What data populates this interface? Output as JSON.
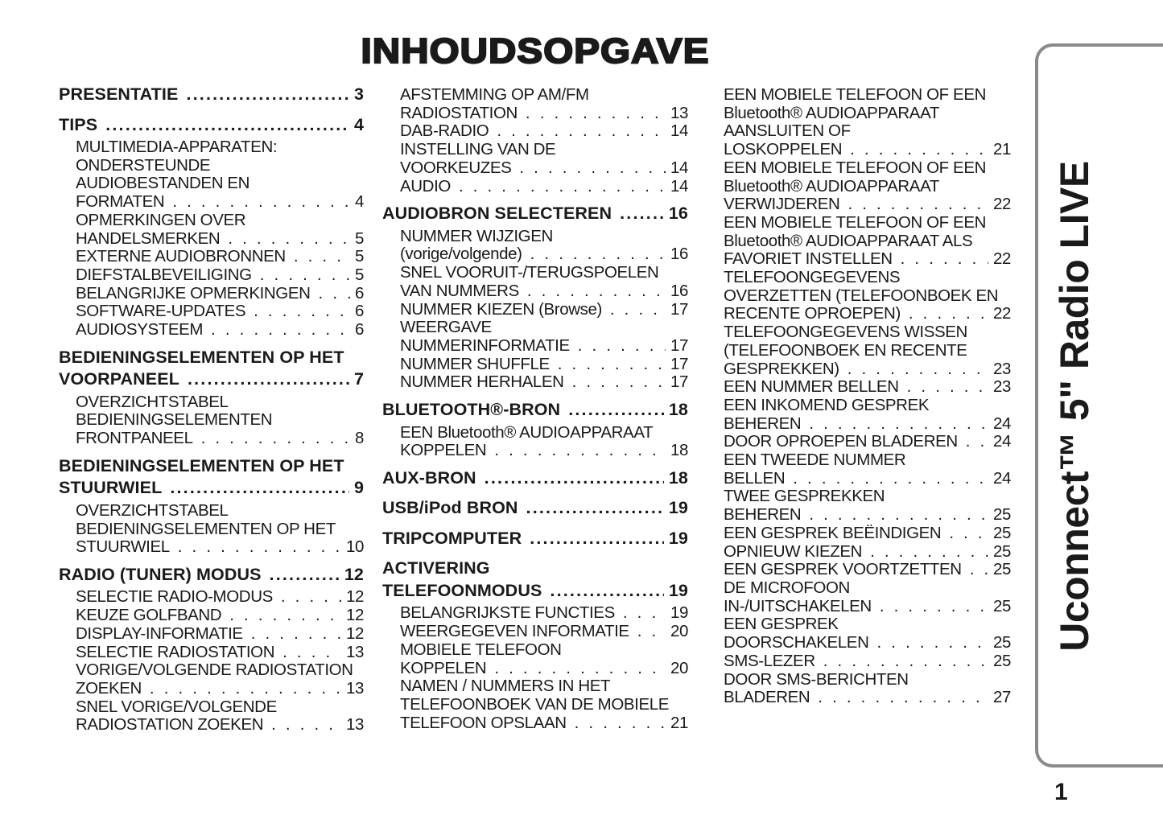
{
  "title": "INHOUDSOPGAVE",
  "side_tab": "Uconnect™ 5\" Radio LIVE",
  "page_number": "1",
  "columns": [
    {
      "entries": [
        {
          "level": "h",
          "lines": [
            "PRESENTATIE"
          ],
          "page": "3"
        },
        {
          "level": "h",
          "lines": [
            "TIPS"
          ],
          "page": "4"
        },
        {
          "level": "s",
          "lines": [
            "MULTIMEDIA-APPARATEN:",
            "ONDERSTEUNDE",
            "AUDIOBESTANDEN EN",
            "FORMATEN"
          ],
          "page": "4"
        },
        {
          "level": "s",
          "lines": [
            "OPMERKINGEN OVER",
            "HANDELSMERKEN"
          ],
          "page": "5"
        },
        {
          "level": "s",
          "lines": [
            "EXTERNE AUDIOBRONNEN"
          ],
          "page": "5"
        },
        {
          "level": "s",
          "lines": [
            "DIEFSTALBEVEILIGING"
          ],
          "page": "5"
        },
        {
          "level": "s",
          "lines": [
            "BELANGRIJKE OPMERKINGEN"
          ],
          "page": "6"
        },
        {
          "level": "s",
          "lines": [
            "SOFTWARE-UPDATES"
          ],
          "page": "6"
        },
        {
          "level": "s",
          "lines": [
            "AUDIOSYSTEEM"
          ],
          "page": "6"
        },
        {
          "level": "h",
          "lines": [
            "BEDIENINGSELEMENTEN OP HET",
            "VOORPANEEL"
          ],
          "page": "7"
        },
        {
          "level": "s",
          "lines": [
            "OVERZICHTSTABEL",
            "BEDIENINGSELEMENTEN",
            "FRONTPANEEL"
          ],
          "page": "8"
        },
        {
          "level": "h",
          "lines": [
            "BEDIENINGSELEMENTEN OP HET",
            "STUURWIEL"
          ],
          "page": "9"
        },
        {
          "level": "s",
          "lines": [
            "OVERZICHTSTABEL",
            "BEDIENINGSELEMENTEN OP HET",
            "STUURWIEL"
          ],
          "page": "10"
        },
        {
          "level": "h",
          "lines": [
            "RADIO (TUNER) MODUS"
          ],
          "page": "12"
        },
        {
          "level": "s",
          "lines": [
            "SELECTIE RADIO-MODUS"
          ],
          "page": "12"
        },
        {
          "level": "s",
          "lines": [
            "KEUZE GOLFBAND"
          ],
          "page": "12"
        },
        {
          "level": "s",
          "lines": [
            "DISPLAY-INFORMATIE"
          ],
          "page": "12"
        },
        {
          "level": "s",
          "lines": [
            "SELECTIE RADIOSTATION"
          ],
          "page": "13"
        },
        {
          "level": "s",
          "lines": [
            "VORIGE/VOLGENDE RADIOSTATION",
            "ZOEKEN"
          ],
          "page": "13"
        },
        {
          "level": "s",
          "lines": [
            "SNEL VORIGE/VOLGENDE",
            "RADIOSTATION ZOEKEN"
          ],
          "page": "13"
        }
      ]
    },
    {
      "entries": [
        {
          "level": "s",
          "lines": [
            "AFSTEMMING OP AM/FM",
            "RADIOSTATION"
          ],
          "page": "13"
        },
        {
          "level": "s",
          "lines": [
            "DAB-RADIO"
          ],
          "page": "14"
        },
        {
          "level": "s",
          "lines": [
            "INSTELLING VAN DE",
            "VOORKEUZES"
          ],
          "page": "14"
        },
        {
          "level": "s",
          "lines": [
            "AUDIO"
          ],
          "page": "14"
        },
        {
          "level": "h",
          "lines": [
            "AUDIOBRON SELECTEREN"
          ],
          "page": "16"
        },
        {
          "level": "s",
          "lines": [
            "NUMMER WIJZIGEN",
            "(vorige/volgende)"
          ],
          "page": "16"
        },
        {
          "level": "s",
          "lines": [
            "SNEL VOORUIT-/TERUGSPOELEN",
            "VAN NUMMERS"
          ],
          "page": "16"
        },
        {
          "level": "s",
          "lines": [
            "NUMMER KIEZEN (Browse)"
          ],
          "page": "17"
        },
        {
          "level": "s",
          "lines": [
            "WEERGAVE",
            "NUMMERINFORMATIE"
          ],
          "page": "17"
        },
        {
          "level": "s",
          "lines": [
            "NUMMER SHUFFLE"
          ],
          "page": "17"
        },
        {
          "level": "s",
          "lines": [
            "NUMMER HERHALEN"
          ],
          "page": "17"
        },
        {
          "level": "h",
          "lines": [
            "BLUETOOTH®-BRON"
          ],
          "page": "18"
        },
        {
          "level": "s",
          "lines": [
            "EEN Bluetooth® AUDIOAPPARAAT",
            "KOPPELEN"
          ],
          "page": "18"
        },
        {
          "level": "h",
          "lines": [
            "AUX-BRON"
          ],
          "page": "18"
        },
        {
          "level": "h",
          "lines": [
            "USB/iPod BRON"
          ],
          "page": "19"
        },
        {
          "level": "h",
          "lines": [
            "TRIPCOMPUTER"
          ],
          "page": "19"
        },
        {
          "level": "h",
          "lines": [
            "ACTIVERING",
            "TELEFOONMODUS"
          ],
          "page": "19"
        },
        {
          "level": "s",
          "lines": [
            "BELANGRIJKSTE FUNCTIES"
          ],
          "page": "19"
        },
        {
          "level": "s",
          "lines": [
            "WEERGEGEVEN INFORMATIE"
          ],
          "page": "20"
        },
        {
          "level": "s",
          "lines": [
            "MOBIELE TELEFOON",
            "KOPPELEN"
          ],
          "page": "20"
        },
        {
          "level": "s",
          "lines": [
            "NAMEN / NUMMERS IN HET",
            "TELEFOONBOEK VAN DE MOBIELE",
            "TELEFOON OPSLAAN"
          ],
          "page": "21"
        }
      ]
    },
    {
      "entries": [
        {
          "level": "s",
          "lines": [
            "EEN MOBIELE TELEFOON OF EEN",
            "Bluetooth® AUDIOAPPARAAT",
            "AANSLUITEN OF",
            "LOSKOPPELEN"
          ],
          "page": "21"
        },
        {
          "level": "s",
          "lines": [
            "EEN MOBIELE TELEFOON OF EEN",
            "Bluetooth® AUDIOAPPARAAT",
            "VERWIJDEREN"
          ],
          "page": "22"
        },
        {
          "level": "s",
          "lines": [
            "EEN MOBIELE TELEFOON OF EEN",
            "Bluetooth® AUDIOAPPARAAT ALS",
            "FAVORIET INSTELLEN"
          ],
          "page": "22"
        },
        {
          "level": "s",
          "lines": [
            "TELEFOONGEGEVENS",
            "OVERZETTEN (TELEFOONBOEK EN",
            "RECENTE OPROEPEN)"
          ],
          "page": "22"
        },
        {
          "level": "s",
          "lines": [
            "TELEFOONGEGEVENS WISSEN",
            "(TELEFOONBOEK EN RECENTE",
            "GESPREKKEN)"
          ],
          "page": "23"
        },
        {
          "level": "s",
          "lines": [
            "EEN NUMMER BELLEN"
          ],
          "page": "23"
        },
        {
          "level": "s",
          "lines": [
            "EEN INKOMEND GESPREK",
            "BEHEREN"
          ],
          "page": "24"
        },
        {
          "level": "s",
          "lines": [
            "DOOR OPROEPEN BLADEREN"
          ],
          "page": "24"
        },
        {
          "level": "s",
          "lines": [
            "EEN TWEEDE NUMMER",
            "BELLEN"
          ],
          "page": "24"
        },
        {
          "level": "s",
          "lines": [
            "TWEE GESPREKKEN",
            "BEHEREN"
          ],
          "page": "25"
        },
        {
          "level": "s",
          "lines": [
            "EEN GESPREK BEËINDIGEN"
          ],
          "page": "25"
        },
        {
          "level": "s",
          "lines": [
            "OPNIEUW KIEZEN"
          ],
          "page": "25"
        },
        {
          "level": "s",
          "lines": [
            "EEN GESPREK VOORTZETTEN"
          ],
          "page": "25"
        },
        {
          "level": "s",
          "lines": [
            "DE MICROFOON",
            "IN-/UITSCHAKELEN"
          ],
          "page": "25"
        },
        {
          "level": "s",
          "lines": [
            "EEN GESPREK",
            "DOORSCHAKELEN"
          ],
          "page": "25"
        },
        {
          "level": "s",
          "lines": [
            "SMS-LEZER"
          ],
          "page": "25"
        },
        {
          "level": "s",
          "lines": [
            "DOOR SMS-BERICHTEN",
            "BLADEREN"
          ],
          "page": "27"
        }
      ]
    }
  ]
}
